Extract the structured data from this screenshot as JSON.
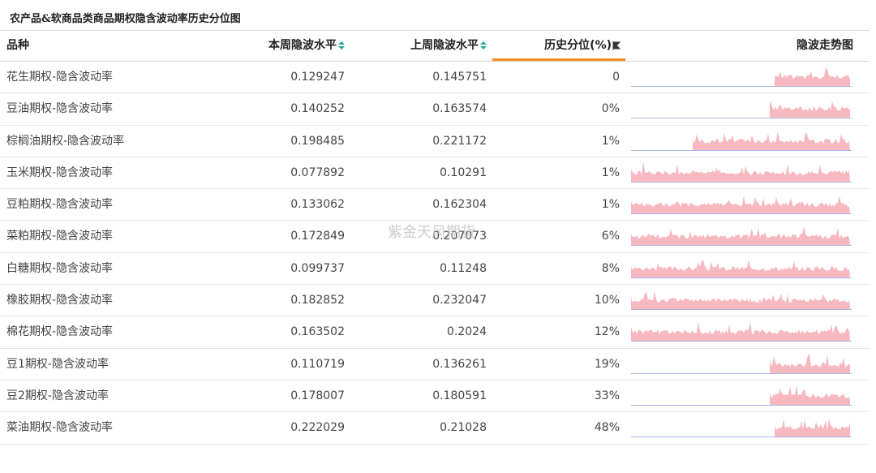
{
  "title": "农产品&软商品类商品期权隐含波动率历史分位图",
  "watermark": "紫金天风期货",
  "columns": {
    "name": "品种",
    "current": "本周隐波水平",
    "previous": "上周隐波水平",
    "percentile": "历史分位(%)",
    "trend": "隐波走势图"
  },
  "colors": {
    "spark_fill": "#f7b8c0",
    "spark_baseline": "#aab4e8",
    "accent": "#f08a24",
    "sort": "#26a69a"
  },
  "rows": [
    {
      "name": "花生期权-隐含波动率",
      "current": "0.129247",
      "previous": "0.145751",
      "percentile": "0",
      "start": 0.65
    },
    {
      "name": "豆油期权-隐含波动率",
      "current": "0.140252",
      "previous": "0.163574",
      "percentile": "0%",
      "start": 0.63
    },
    {
      "name": "棕榈油期权-隐含波动率",
      "current": "0.198485",
      "previous": "0.221172",
      "percentile": "1%",
      "start": 0.28
    },
    {
      "name": "玉米期权-隐含波动率",
      "current": "0.077892",
      "previous": "0.10291",
      "percentile": "1%",
      "start": 0.0
    },
    {
      "name": "豆粕期权-隐含波动率",
      "current": "0.133062",
      "previous": "0.162304",
      "percentile": "1%",
      "start": 0.0
    },
    {
      "name": "菜粕期权-隐含波动率",
      "current": "0.172849",
      "previous": "0.207073",
      "percentile": "6%",
      "start": 0.0
    },
    {
      "name": "白糖期权-隐含波动率",
      "current": "0.099737",
      "previous": "0.11248",
      "percentile": "8%",
      "start": 0.0
    },
    {
      "name": "橡胶期权-隐含波动率",
      "current": "0.182852",
      "previous": "0.232047",
      "percentile": "10%",
      "start": 0.0
    },
    {
      "name": "棉花期权-隐含波动率",
      "current": "0.163502",
      "previous": "0.2024",
      "percentile": "12%",
      "start": 0.0
    },
    {
      "name": "豆1期权-隐含波动率",
      "current": "0.110719",
      "previous": "0.136261",
      "percentile": "19%",
      "start": 0.63
    },
    {
      "name": "豆2期权-隐含波动率",
      "current": "0.178007",
      "previous": "0.180591",
      "percentile": "33%",
      "start": 0.63
    },
    {
      "name": "菜油期权-隐含波动率",
      "current": "0.222029",
      "previous": "0.21028",
      "percentile": "48%",
      "start": 0.65
    }
  ]
}
